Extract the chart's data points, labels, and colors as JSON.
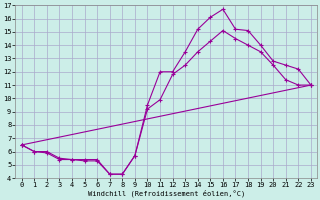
{
  "xlabel": "Windchill (Refroidissement éolien,°C)",
  "xlim": [
    -0.5,
    23.5
  ],
  "ylim": [
    4,
    17
  ],
  "xticks": [
    0,
    1,
    2,
    3,
    4,
    5,
    6,
    7,
    8,
    9,
    10,
    11,
    12,
    13,
    14,
    15,
    16,
    17,
    18,
    19,
    20,
    21,
    22,
    23
  ],
  "yticks": [
    4,
    5,
    6,
    7,
    8,
    9,
    10,
    11,
    12,
    13,
    14,
    15,
    16,
    17
  ],
  "bg_color": "#cceee8",
  "grid_color": "#aaaacc",
  "line_color": "#990099",
  "line1_x": [
    0,
    1,
    2,
    3,
    4,
    5,
    6,
    7,
    8,
    9,
    10,
    11,
    12,
    13,
    14,
    15,
    16,
    17,
    18,
    19,
    20,
    21,
    22,
    23
  ],
  "line1_y": [
    6.5,
    6.0,
    6.0,
    5.5,
    5.4,
    5.4,
    5.4,
    4.3,
    4.3,
    5.7,
    9.5,
    12.0,
    12.0,
    13.5,
    15.2,
    16.1,
    16.7,
    15.2,
    15.1,
    14.0,
    12.8,
    12.5,
    12.2,
    11.0
  ],
  "line2_x": [
    0,
    1,
    2,
    3,
    4,
    5,
    6,
    7,
    8,
    9,
    10,
    11,
    12,
    13,
    14,
    15,
    16,
    17,
    18,
    19,
    20,
    21,
    22,
    23
  ],
  "line2_y": [
    6.5,
    6.0,
    5.9,
    5.4,
    5.4,
    5.3,
    5.3,
    4.3,
    4.3,
    5.7,
    9.2,
    9.9,
    11.8,
    12.5,
    13.5,
    14.3,
    15.1,
    14.5,
    14.0,
    13.5,
    12.5,
    11.4,
    11.0,
    11.0
  ],
  "line3_x": [
    0,
    23
  ],
  "line3_y": [
    6.5,
    11.0
  ],
  "marker": "+",
  "markersize": 3,
  "linewidth": 0.8
}
